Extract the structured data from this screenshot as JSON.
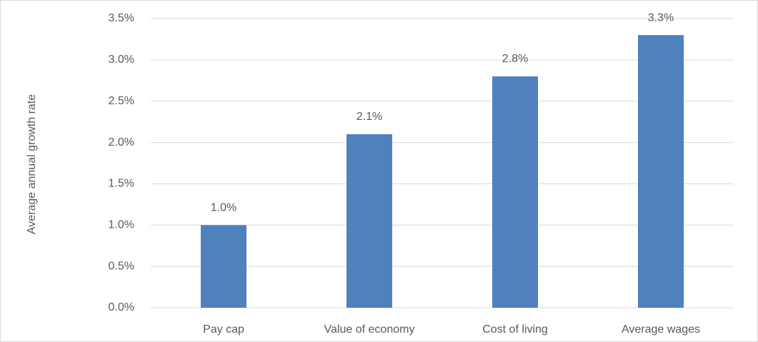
{
  "chart_data": {
    "type": "bar",
    "y_label": "Average annual growth rate",
    "categories": [
      "Pay cap",
      "Value of economy",
      "Cost of living",
      "Average wages"
    ],
    "values": [
      1.0,
      2.1,
      2.8,
      3.3
    ],
    "value_labels": [
      "1.0%",
      "2.1%",
      "2.8%",
      "3.3%"
    ],
    "color": "#4f81bd",
    "ylim": [
      0,
      3.5
    ],
    "yticks": [
      {
        "value": 0,
        "label": "0.0%"
      },
      {
        "value": 0.5,
        "label": "0.5%"
      },
      {
        "value": 1.0,
        "label": "1.0%"
      },
      {
        "value": 1.5,
        "label": "1.5%"
      },
      {
        "value": 2.0,
        "label": "2.0%"
      },
      {
        "value": 2.5,
        "label": "2.5%"
      },
      {
        "value": 3.0,
        "label": "3.0%"
      },
      {
        "value": 3.5,
        "label": "3.5%"
      }
    ],
    "grid": true
  }
}
